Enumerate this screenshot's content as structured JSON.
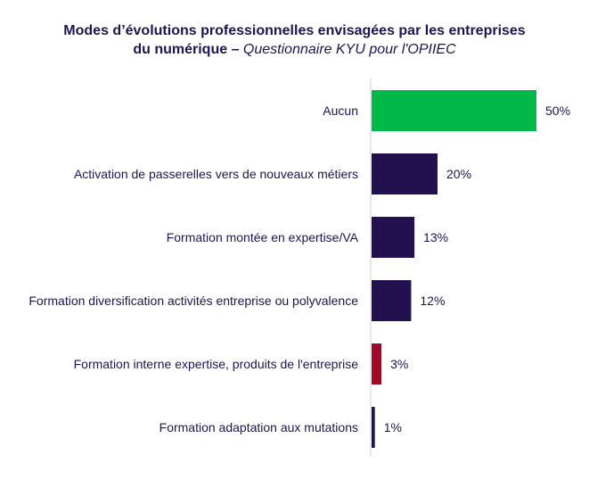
{
  "chart_data": {
    "type": "bar",
    "orientation": "horizontal",
    "title_line1": "Modes d’évolutions professionnelles envisagées par les entreprises",
    "title_line2_bold": "du numérique – ",
    "title_line2_italic": "Questionnaire KYU pour l'OPIIEC",
    "categories": [
      "Aucun",
      "Activation de passerelles vers de nouveaux métiers",
      "Formation montée en expertise/VA",
      "Formation diversification activités entreprise ou polyvalence",
      "Formation interne expertise, produits de l'entreprise",
      "Formation adaptation aux mutations"
    ],
    "values": [
      50,
      20,
      13,
      12,
      3,
      1
    ],
    "value_labels": [
      "50%",
      "20%",
      "13%",
      "12%",
      "3%",
      "1%"
    ],
    "colors": [
      "#00b84a",
      "#22104f",
      "#22104f",
      "#22104f",
      "#a0082a",
      "#22104f"
    ],
    "xlim": [
      0,
      50
    ],
    "grid": false,
    "legend": "none"
  }
}
